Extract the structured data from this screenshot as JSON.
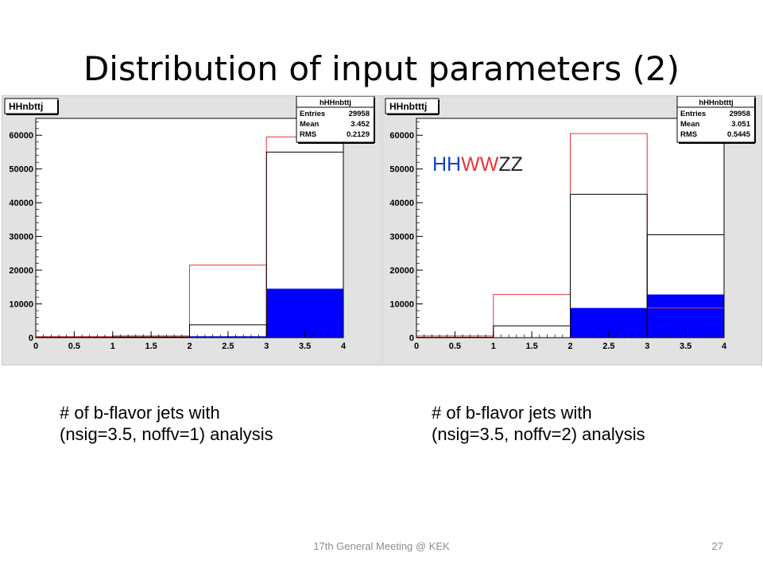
{
  "title": "Distribution of input parameters (2)",
  "colors": {
    "red": "#e8353a",
    "black": "#000000",
    "blue": "#0000ff",
    "frame_bg": "#e2e2e2",
    "plot_bg": "#ffffff",
    "footer": "#8c8c8c"
  },
  "captions": [
    {
      "line1": "# of b-flavor jets with",
      "line2": "(nsig=3.5, noffv=1) analysis"
    },
    {
      "line1": "# of b-flavor jets with",
      "line2": "(nsig=3.5, noffv=2) analysis"
    }
  ],
  "footer": {
    "text": "17th General Meeting @ KEK",
    "page": "27"
  },
  "chart_data": [
    {
      "type": "bar",
      "title": "HHnbttj",
      "xlim": [
        0,
        4
      ],
      "ylim": [
        0,
        65000
      ],
      "xticks": [
        "0",
        "0.5",
        "1",
        "1.5",
        "2",
        "2.5",
        "3",
        "3.5",
        "4"
      ],
      "yticks": [
        "0",
        "10000",
        "20000",
        "30000",
        "40000",
        "50000",
        "60000"
      ],
      "bin_edges": [
        0,
        1,
        2,
        3,
        4
      ],
      "series": [
        {
          "color": "red",
          "style": "outline",
          "values": [
            300,
            500,
            21500,
            59500
          ]
        },
        {
          "color": "black",
          "style": "outline",
          "values": [
            100,
            200,
            3800,
            55000
          ]
        },
        {
          "color": "blue",
          "style": "filled",
          "values": [
            0,
            50,
            400,
            14500
          ]
        }
      ],
      "stats": {
        "name": "hHHnbttj",
        "rows": [
          {
            "label": "Entries",
            "value": "29958"
          },
          {
            "label": "Mean",
            "value": "3.452"
          },
          {
            "label": "RMS",
            "value": "0.2129"
          }
        ]
      },
      "annotation": null
    },
    {
      "type": "bar",
      "title": "HHnbtttj",
      "xlim": [
        0,
        4
      ],
      "ylim": [
        0,
        65000
      ],
      "xticks": [
        "0",
        "0.5",
        "1",
        "1.5",
        "2",
        "2.5",
        "3",
        "3.5",
        "4"
      ],
      "yticks": [
        "0",
        "10000",
        "20000",
        "30000",
        "40000",
        "50000",
        "60000"
      ],
      "bin_edges": [
        0,
        1,
        2,
        3,
        4
      ],
      "series": [
        {
          "color": "red",
          "style": "outline",
          "values": [
            500,
            12800,
            60500,
            8800
          ]
        },
        {
          "color": "black",
          "style": "outline",
          "values": [
            100,
            3500,
            42500,
            30500
          ]
        },
        {
          "color": "blue",
          "style": "filled",
          "values": [
            0,
            50,
            8800,
            12800
          ]
        }
      ],
      "stats": {
        "name": "hHHnbtttj",
        "rows": [
          {
            "label": "Entries",
            "value": "29958"
          },
          {
            "label": "Mean",
            "value": "3.051"
          },
          {
            "label": "RMS",
            "value": "0.5445"
          }
        ]
      },
      "annotation": {
        "parts": [
          {
            "text": "HH",
            "color": "#1a3fd0"
          },
          {
            "text": "WW",
            "color": "#e8353a"
          },
          {
            "text": "ZZ",
            "color": "#222222"
          }
        ]
      }
    }
  ]
}
